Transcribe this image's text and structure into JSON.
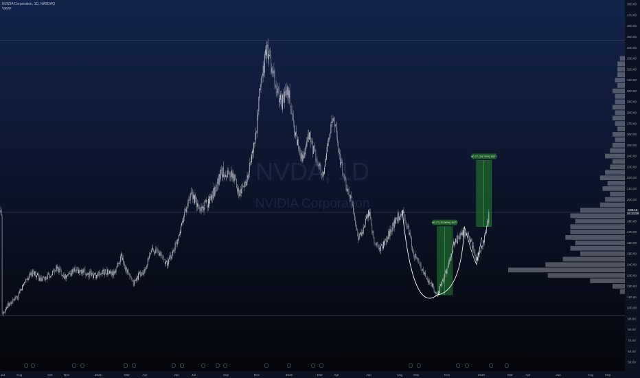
{
  "header": {
    "title": "NVIDIA Corporation, 1D, NASDAQ",
    "indicator": "VRVP"
  },
  "watermark": {
    "ticker": "NVDA, 1D",
    "company": "NVIDIA Corporation"
  },
  "colors": {
    "background_top": "#13234a",
    "background_bottom": "#06070d",
    "candle": "#c9ccd4",
    "volume_profile": "#8a8f99",
    "measure_box": "#1f6b2c",
    "cup_curve": "#ffffff"
  },
  "price_label": {
    "value": "188.15",
    "sub": "20:33:09"
  },
  "chart_data": {
    "type": "candlestick",
    "title": "NVIDIA Corporation, 1D, NASDAQ",
    "y_axis": {
      "min": 50,
      "max": 380,
      "tick_labels": [
        "50.00",
        "60.00",
        "70.00",
        "80.00",
        "90.00",
        "100.00",
        "110.00",
        "120.00",
        "130.00",
        "140.00",
        "150.00",
        "160.00",
        "170.00",
        "180.00",
        "190.00",
        "200.00",
        "210.00",
        "220.00",
        "230.00",
        "240.00",
        "250.00",
        "260.00",
        "270.00",
        "280.00",
        "290.00",
        "300.00",
        "310.00",
        "320.00",
        "330.00",
        "340.00",
        "350.00",
        "360.00",
        "370.00",
        "380.00"
      ]
    },
    "x_axis": {
      "tick_labels": [
        "Jul",
        "Aug",
        "Oct",
        "Nov",
        "2021",
        "Mar",
        "Apr",
        "Jun",
        "Jul",
        "Sep",
        "Nov",
        "2022",
        "Mar",
        "Apr",
        "Jun",
        "Aug",
        "Sep",
        "Nov",
        "2023",
        "Mar",
        "Apr",
        "Jun",
        "Aug",
        "Sep"
      ]
    },
    "horizontal_lines": [
      346,
      188.15,
      93
    ],
    "close_path": [
      [
        "2020-07-01",
        95
      ],
      [
        "2020-07-15",
        103
      ],
      [
        "2020-08-01",
        110
      ],
      [
        "2020-08-15",
        125
      ],
      [
        "2020-09-01",
        133
      ],
      [
        "2020-09-15",
        125
      ],
      [
        "2020-10-01",
        130
      ],
      [
        "2020-10-15",
        137
      ],
      [
        "2020-11-01",
        128
      ],
      [
        "2020-11-15",
        135
      ],
      [
        "2020-12-01",
        133
      ],
      [
        "2020-12-15",
        131
      ],
      [
        "2021-01-01",
        130
      ],
      [
        "2021-01-15",
        134
      ],
      [
        "2021-02-01",
        131
      ],
      [
        "2021-02-15",
        148
      ],
      [
        "2021-03-01",
        131
      ],
      [
        "2021-03-10",
        122
      ],
      [
        "2021-03-20",
        130
      ],
      [
        "2021-04-01",
        133
      ],
      [
        "2021-04-15",
        155
      ],
      [
        "2021-05-01",
        150
      ],
      [
        "2021-05-15",
        140
      ],
      [
        "2021-06-01",
        160
      ],
      [
        "2021-06-15",
        185
      ],
      [
        "2021-07-01",
        205
      ],
      [
        "2021-07-15",
        190
      ],
      [
        "2021-08-01",
        198
      ],
      [
        "2021-08-15",
        210
      ],
      [
        "2021-08-25",
        225
      ],
      [
        "2021-09-05",
        225
      ],
      [
        "2021-09-20",
        220
      ],
      [
        "2021-10-01",
        205
      ],
      [
        "2021-10-15",
        220
      ],
      [
        "2021-11-01",
        260
      ],
      [
        "2021-11-10",
        310
      ],
      [
        "2021-11-22",
        340
      ],
      [
        "2021-12-01",
        320
      ],
      [
        "2021-12-10",
        300
      ],
      [
        "2021-12-20",
        290
      ],
      [
        "2022-01-01",
        300
      ],
      [
        "2022-01-15",
        260
      ],
      [
        "2022-01-30",
        235
      ],
      [
        "2022-02-10",
        260
      ],
      [
        "2022-02-25",
        235
      ],
      [
        "2022-03-10",
        220
      ],
      [
        "2022-03-20",
        260
      ],
      [
        "2022-03-30",
        275
      ],
      [
        "2022-04-08",
        245
      ],
      [
        "2022-04-20",
        215
      ],
      [
        "2022-05-05",
        195
      ],
      [
        "2022-05-15",
        165
      ],
      [
        "2022-05-25",
        170
      ],
      [
        "2022-06-05",
        190
      ],
      [
        "2022-06-15",
        160
      ],
      [
        "2022-06-28",
        155
      ],
      [
        "2022-07-10",
        165
      ],
      [
        "2022-07-25",
        180
      ],
      [
        "2022-08-08",
        190
      ],
      [
        "2022-08-18",
        175
      ],
      [
        "2022-08-30",
        150
      ],
      [
        "2022-09-10",
        140
      ],
      [
        "2022-09-25",
        125
      ],
      [
        "2022-10-05",
        120
      ],
      [
        "2022-10-14",
        112
      ],
      [
        "2022-10-25",
        125
      ],
      [
        "2022-11-05",
        140
      ],
      [
        "2022-11-15",
        160
      ],
      [
        "2022-11-25",
        165
      ],
      [
        "2022-12-05",
        170
      ],
      [
        "2022-12-15",
        165
      ],
      [
        "2022-12-28",
        145
      ],
      [
        "2023-01-08",
        155
      ],
      [
        "2023-01-15",
        170
      ],
      [
        "2023-01-22",
        188
      ]
    ],
    "annotations": [
      {
        "label": "60.77 (53.59%) 6077",
        "start": "2022-10-14",
        "from": 112,
        "to": 175
      },
      {
        "label": "60.77 (34.76%) 6077",
        "start": "2022-12-28",
        "from": 175,
        "to": 236
      }
    ],
    "volume_profile": [
      {
        "price": 115,
        "vol": 2
      },
      {
        "price": 120,
        "vol": 5
      },
      {
        "price": 125,
        "vol": 14
      },
      {
        "price": 130,
        "vol": 31
      },
      {
        "price": 135,
        "vol": 47
      },
      {
        "price": 140,
        "vol": 32
      },
      {
        "price": 145,
        "vol": 25
      },
      {
        "price": 150,
        "vol": 18
      },
      {
        "price": 155,
        "vol": 22
      },
      {
        "price": 160,
        "vol": 20
      },
      {
        "price": 165,
        "vol": 24
      },
      {
        "price": 170,
        "vol": 22
      },
      {
        "price": 175,
        "vol": 22
      },
      {
        "price": 180,
        "vol": 20
      },
      {
        "price": 185,
        "vol": 22
      },
      {
        "price": 190,
        "vol": 18
      },
      {
        "price": 195,
        "vol": 10
      },
      {
        "price": 200,
        "vol": 8
      },
      {
        "price": 205,
        "vol": 6
      },
      {
        "price": 210,
        "vol": 9
      },
      {
        "price": 215,
        "vol": 7
      },
      {
        "price": 220,
        "vol": 10
      },
      {
        "price": 225,
        "vol": 8
      },
      {
        "price": 230,
        "vol": 6
      },
      {
        "price": 235,
        "vol": 5
      },
      {
        "price": 240,
        "vol": 8
      },
      {
        "price": 245,
        "vol": 6
      },
      {
        "price": 250,
        "vol": 5
      },
      {
        "price": 255,
        "vol": 4
      },
      {
        "price": 260,
        "vol": 5
      },
      {
        "price": 265,
        "vol": 3
      },
      {
        "price": 270,
        "vol": 4
      },
      {
        "price": 275,
        "vol": 5
      },
      {
        "price": 280,
        "vol": 4
      },
      {
        "price": 285,
        "vol": 5
      },
      {
        "price": 290,
        "vol": 4
      },
      {
        "price": 295,
        "vol": 4
      },
      {
        "price": 300,
        "vol": 5
      },
      {
        "price": 305,
        "vol": 3
      },
      {
        "price": 310,
        "vol": 4
      },
      {
        "price": 315,
        "vol": 3
      },
      {
        "price": 320,
        "vol": 3
      },
      {
        "price": 325,
        "vol": 3
      },
      {
        "price": 330,
        "vol": 2
      }
    ]
  }
}
